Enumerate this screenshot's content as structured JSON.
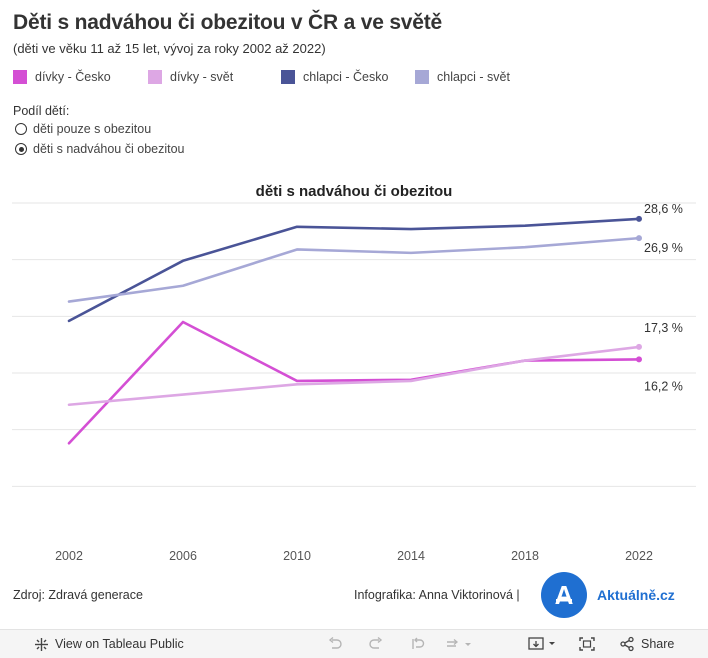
{
  "header": {
    "title": "Děti s nadváhou či obezitou v ČR a ve světě",
    "subtitle": "(děti ve věku 11 až 15 let, vývoj za roky 2002 až 2022)"
  },
  "legend": {
    "items": [
      {
        "label": "dívky - Česko",
        "color": "#d44fd4"
      },
      {
        "label": "dívky - svět",
        "color": "#dda7e4"
      },
      {
        "label": "chlapci - Česko",
        "color": "#4a5497"
      },
      {
        "label": "chlapci - svět",
        "color": "#a6a8d6"
      }
    ]
  },
  "filter": {
    "label": "Podíl dětí:",
    "options": [
      {
        "label": "děti pouze s obezitou",
        "selected": false
      },
      {
        "label": "děti s nadváhou či obezitou",
        "selected": true
      }
    ]
  },
  "chart_data": {
    "type": "line",
    "title": "děti s nadváhou či obezitou",
    "xlabel": "",
    "ylabel": "",
    "categories": [
      "2002",
      "2006",
      "2010",
      "2014",
      "2018",
      "2022"
    ],
    "ylim": [
      0,
      30
    ],
    "grid": true,
    "series": [
      {
        "name": "dívky - Česko",
        "color": "#d44fd4",
        "values": [
          8.8,
          19.5,
          14.3,
          14.4,
          16.1,
          16.2
        ],
        "end_label": "16,2 %",
        "end_marker": true
      },
      {
        "name": "dívky - svět",
        "color": "#dda7e4",
        "values": [
          12.2,
          13.1,
          14.0,
          14.3,
          16.1,
          17.3
        ],
        "end_label": "17,3 %",
        "end_marker": true
      },
      {
        "name": "chlapci - Česko",
        "color": "#4a5497",
        "values": [
          19.6,
          24.9,
          27.9,
          27.7,
          28.0,
          28.6
        ],
        "end_label": "28,6 %",
        "end_marker": true
      },
      {
        "name": "chlapci - svět",
        "color": "#a6a8d6",
        "values": [
          21.3,
          22.7,
          25.9,
          25.6,
          26.1,
          26.9
        ],
        "end_label": "26,9 %",
        "end_marker": true
      }
    ]
  },
  "footer": {
    "source": "Zdroj: Zdravá generace",
    "credit": "Infografika: Anna Viktorinová |",
    "logo_letter": "A",
    "logo_text": "Aktuálně.cz"
  },
  "toolbar": {
    "view_label": "View on Tableau Public",
    "share_label": "Share"
  }
}
